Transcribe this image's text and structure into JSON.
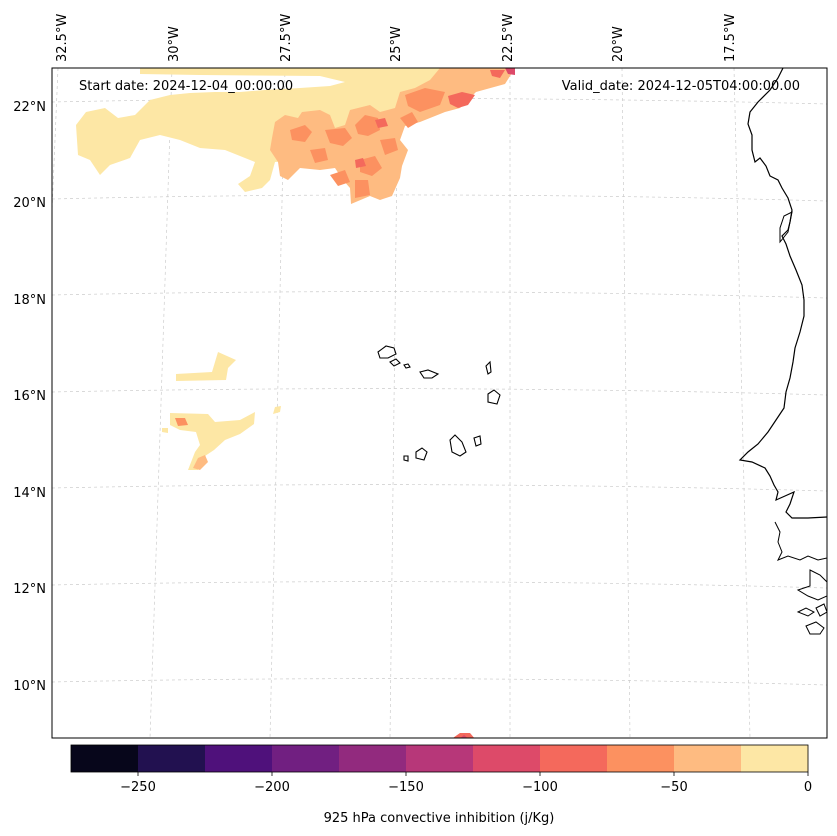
{
  "map": {
    "start_date": "Start date: 2024-12-04_00:00:00",
    "valid_date": "Valid_date: 2024-12-05T04:00:00.00",
    "lon_labels": [
      "32.5°W",
      "30°W",
      "27.5°W",
      "25°W",
      "22.5°W",
      "20°W",
      "17.5°W"
    ],
    "lat_labels": [
      "22°N",
      "20°N",
      "18°N",
      "16°N",
      "14°N",
      "12°N",
      "10°N"
    ],
    "variable": "925 hPa convective inhibition"
  },
  "colorbar": {
    "label": "925 hPa convective inhibition (j/Kg)",
    "ticks": [
      "−250",
      "−200",
      "−150",
      "−100",
      "−50",
      "0"
    ],
    "tick_values": [
      -250,
      -200,
      -150,
      -100,
      -50,
      0
    ],
    "range": [
      -275,
      0
    ],
    "levels": [
      -275,
      -250,
      -225,
      -200,
      -175,
      -150,
      -125,
      -100,
      -75,
      -50,
      -25,
      0
    ],
    "colors": [
      "#07061b",
      "#221150",
      "#4f117b",
      "#711f81",
      "#922a7e",
      "#b73779",
      "#dd4a69",
      "#f4695c",
      "#fc9160",
      "#febb81",
      "#fde7a5"
    ]
  },
  "colors": {
    "gridline": "#cccccc",
    "coast": "#000000",
    "frame": "#000000"
  }
}
